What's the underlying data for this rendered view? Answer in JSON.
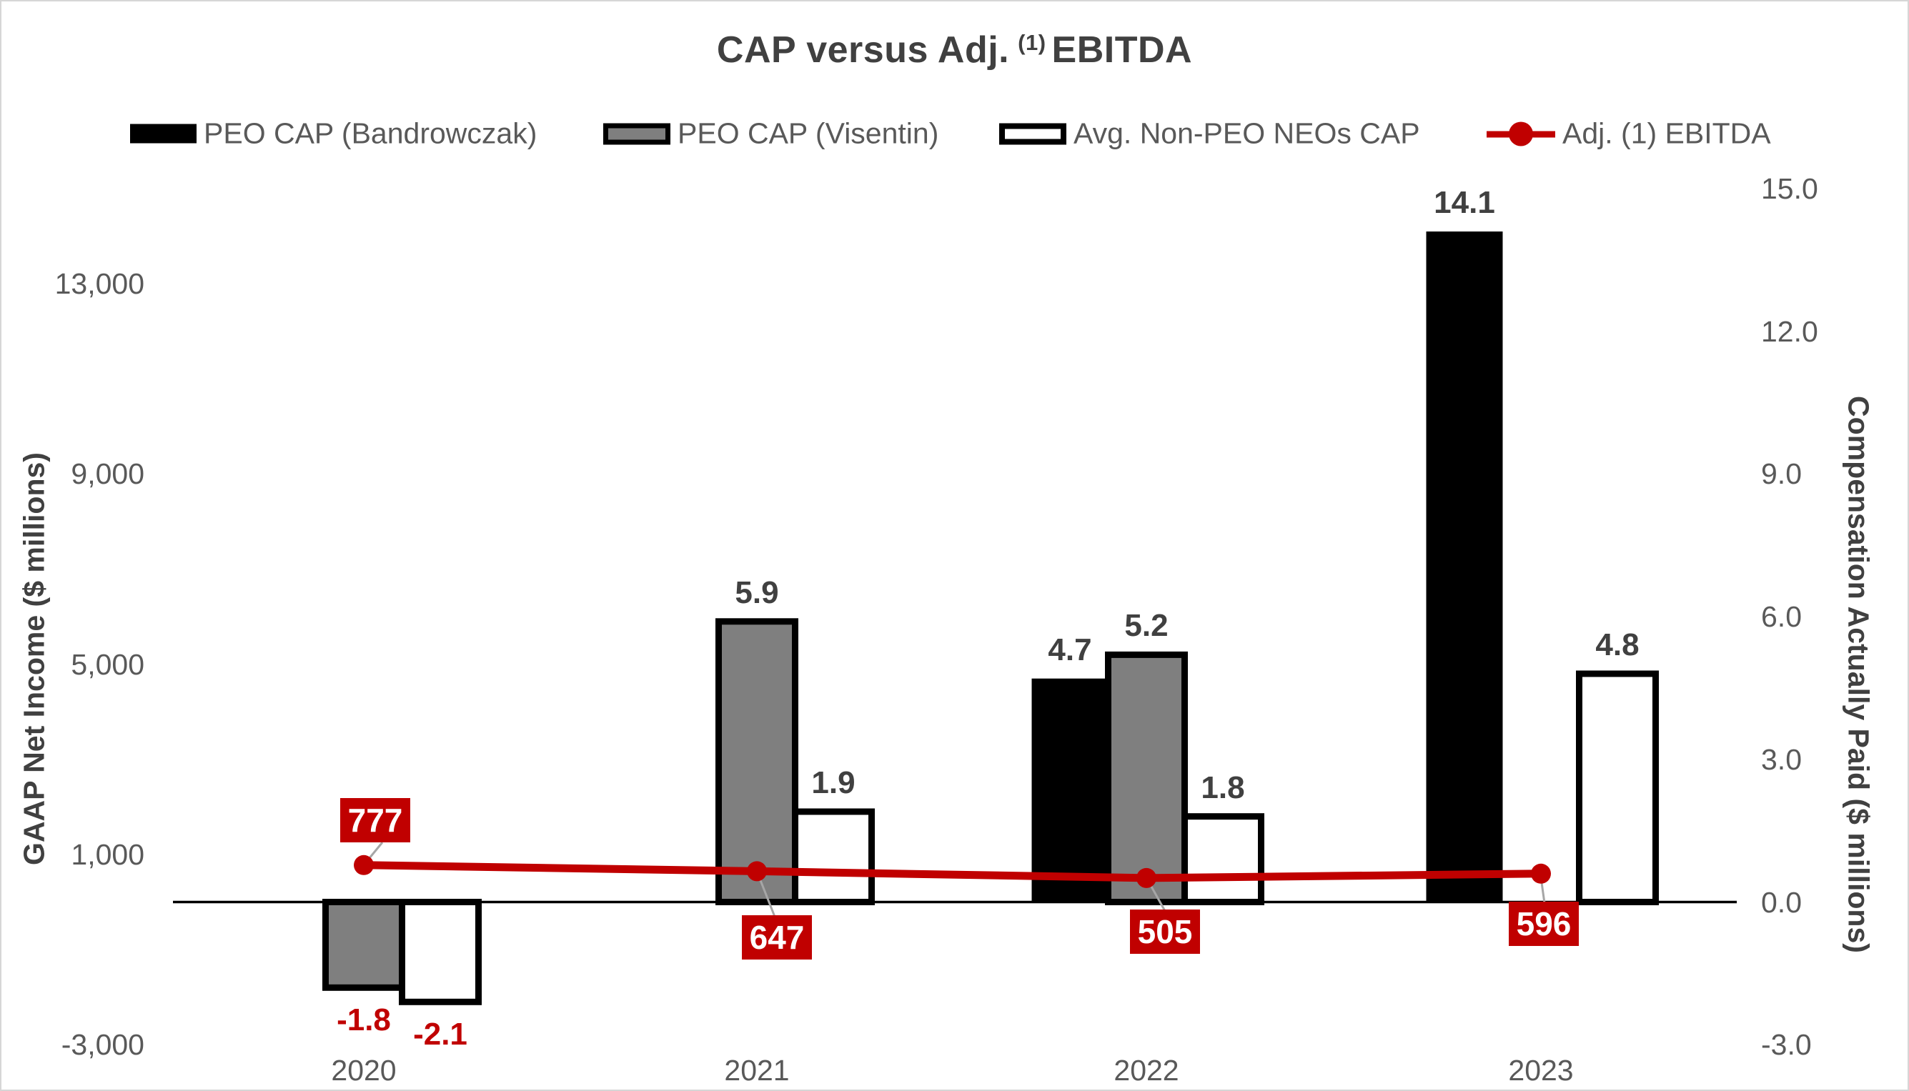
{
  "title": {
    "prefix": "CAP versus Adj.",
    "superscript": "(1)",
    "suffix": "EBITDA"
  },
  "legend": {
    "items": [
      {
        "label": "PEO CAP (Bandrowczak)",
        "swatch": "black-bar"
      },
      {
        "label": "PEO CAP (Visentin)",
        "swatch": "gray-bar"
      },
      {
        "label": "Avg. Non-PEO NEOs CAP",
        "swatch": "white-bar"
      },
      {
        "label": "Adj. (1) EBITDA",
        "swatch": "red-line"
      }
    ]
  },
  "colors": {
    "accent_red": "#C00000",
    "bar_black": "#000000",
    "bar_gray": "#7F7F7F",
    "bar_white": "#FFFFFF",
    "text_dark": "#404040",
    "text_gray": "#595959",
    "leader_gray": "#A6A6A6",
    "axis_black": "#000000"
  },
  "chart_data": {
    "type": "combo-bar-line",
    "title": "CAP versus Adj. (1) EBITDA",
    "categories": [
      "2020",
      "2021",
      "2022",
      "2023"
    ],
    "series": [
      {
        "name": "PEO CAP (Bandrowczak)",
        "type": "bar",
        "axis": "right",
        "color": "#000000",
        "values": [
          null,
          null,
          4.7,
          14.1
        ],
        "labels": [
          "",
          "",
          "4.7",
          "14.1"
        ]
      },
      {
        "name": "PEO CAP (Visentin)",
        "type": "bar",
        "axis": "right",
        "color": "#7F7F7F",
        "values": [
          -1.8,
          5.9,
          5.2,
          null
        ],
        "labels": [
          "-1.8",
          "5.9",
          "5.2",
          ""
        ]
      },
      {
        "name": "Avg. Non-PEO NEOs CAP",
        "type": "bar",
        "axis": "right",
        "color": "#FFFFFF",
        "values": [
          -2.1,
          1.9,
          1.8,
          4.8
        ],
        "labels": [
          "-2.1",
          "1.9",
          "1.8",
          "4.8"
        ]
      },
      {
        "name": "Adj. (1) EBITDA",
        "type": "line",
        "axis": "left",
        "color": "#C00000",
        "values": [
          777,
          647,
          505,
          596
        ],
        "labels": [
          "777",
          "647",
          "505",
          "596"
        ]
      }
    ],
    "left_axis": {
      "title": "GAAP Net Income ($ millions)",
      "min": -3000,
      "max": 15000,
      "ticks": [
        {
          "value": 13000,
          "label": "13,000"
        },
        {
          "value": 9000,
          "label": "9,000"
        },
        {
          "value": 5000,
          "label": "5,000"
        },
        {
          "value": 1000,
          "label": "1,000"
        },
        {
          "value": -3000,
          "label": "-3,000"
        }
      ]
    },
    "right_axis": {
      "title": "Compensation Actually Paid ($ millions)",
      "min": -3,
      "max": 15,
      "ticks": [
        {
          "value": 15,
          "label": "15.0"
        },
        {
          "value": 12,
          "label": "12.0"
        },
        {
          "value": 9,
          "label": "9.0"
        },
        {
          "value": 6,
          "label": "6.0"
        },
        {
          "value": 3,
          "label": "3.0"
        },
        {
          "value": 0,
          "label": "0.0"
        },
        {
          "value": -3,
          "label": "-3.0"
        }
      ]
    },
    "gridlines": false,
    "legend_position": "top"
  }
}
